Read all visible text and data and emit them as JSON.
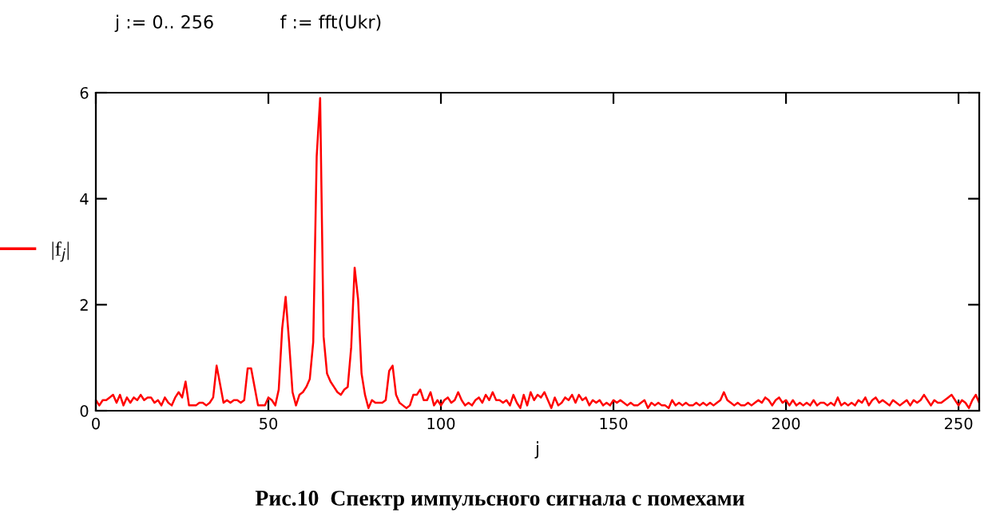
{
  "chart_data": {
    "type": "line",
    "title": "Рис.10  Спектр импульсного сигнала с помехами",
    "xlabel": "j",
    "annotations": [
      "j := 0.. 256",
      "f := fft(Ukr)"
    ],
    "x": [
      0,
      1,
      2,
      3,
      4,
      5,
      6,
      7,
      8,
      9,
      10,
      11,
      12,
      13,
      14,
      15,
      16,
      17,
      18,
      19,
      20,
      21,
      22,
      23,
      24,
      25,
      26,
      27,
      28,
      29,
      30,
      31,
      32,
      33,
      34,
      35,
      36,
      37,
      38,
      39,
      40,
      41,
      42,
      43,
      44,
      45,
      46,
      47,
      48,
      49,
      50,
      51,
      52,
      53,
      54,
      55,
      56,
      57,
      58,
      59,
      60,
      61,
      62,
      63,
      64,
      65,
      66,
      67,
      68,
      69,
      70,
      71,
      72,
      73,
      74,
      75,
      76,
      77,
      78,
      79,
      80,
      81,
      82,
      83,
      84,
      85,
      86,
      87,
      88,
      89,
      90,
      91,
      92,
      93,
      94,
      95,
      96,
      97,
      98,
      99,
      100,
      101,
      102,
      103,
      104,
      105,
      106,
      107,
      108,
      109,
      110,
      111,
      112,
      113,
      114,
      115,
      116,
      117,
      118,
      119,
      120,
      121,
      122,
      123,
      124,
      125,
      126,
      127,
      128,
      129,
      130,
      131,
      132,
      133,
      134,
      135,
      136,
      137,
      138,
      139,
      140,
      141,
      142,
      143,
      144,
      145,
      146,
      147,
      148,
      149,
      150,
      151,
      152,
      153,
      154,
      155,
      156,
      157,
      158,
      159,
      160,
      161,
      162,
      163,
      164,
      165,
      166,
      167,
      168,
      169,
      170,
      171,
      172,
      173,
      174,
      175,
      176,
      177,
      178,
      179,
      180,
      181,
      182,
      183,
      184,
      185,
      186,
      187,
      188,
      189,
      190,
      191,
      192,
      193,
      194,
      195,
      196,
      197,
      198,
      199,
      200,
      201,
      202,
      203,
      204,
      205,
      206,
      207,
      208,
      209,
      210,
      211,
      212,
      213,
      214,
      215,
      216,
      217,
      218,
      219,
      220,
      221,
      222,
      223,
      224,
      225,
      226,
      227,
      228,
      229,
      230,
      231,
      232,
      233,
      234,
      235,
      236,
      237,
      238,
      239,
      240,
      241,
      242,
      243,
      244,
      245,
      246,
      247,
      248,
      249,
      250,
      251,
      252,
      253,
      254,
      255,
      256
    ],
    "series": [
      {
        "name": "|f$_{j}$|",
        "color": "#ff0000",
        "values": [
          0.2,
          0.1,
          0.2,
          0.2,
          0.25,
          0.3,
          0.15,
          0.3,
          0.1,
          0.25,
          0.15,
          0.25,
          0.2,
          0.3,
          0.2,
          0.25,
          0.25,
          0.15,
          0.2,
          0.1,
          0.25,
          0.15,
          0.1,
          0.25,
          0.35,
          0.25,
          0.55,
          0.1,
          0.1,
          0.1,
          0.15,
          0.15,
          0.1,
          0.15,
          0.25,
          0.85,
          0.5,
          0.15,
          0.2,
          0.15,
          0.2,
          0.2,
          0.15,
          0.2,
          0.8,
          0.8,
          0.45,
          0.1,
          0.1,
          0.1,
          0.25,
          0.2,
          0.1,
          0.4,
          1.55,
          2.15,
          1.3,
          0.35,
          0.1,
          0.3,
          0.35,
          0.45,
          0.6,
          1.3,
          4.8,
          5.9,
          1.4,
          0.7,
          0.55,
          0.45,
          0.35,
          0.3,
          0.4,
          0.45,
          1.2,
          2.7,
          2.1,
          0.7,
          0.3,
          0.05,
          0.2,
          0.15,
          0.15,
          0.15,
          0.2,
          0.75,
          0.85,
          0.3,
          0.15,
          0.1,
          0.05,
          0.1,
          0.3,
          0.3,
          0.4,
          0.2,
          0.2,
          0.35,
          0.1,
          0.2,
          0.1,
          0.2,
          0.25,
          0.15,
          0.2,
          0.35,
          0.2,
          0.1,
          0.15,
          0.1,
          0.2,
          0.25,
          0.15,
          0.3,
          0.2,
          0.35,
          0.2,
          0.2,
          0.15,
          0.2,
          0.1,
          0.3,
          0.15,
          0.05,
          0.3,
          0.1,
          0.35,
          0.2,
          0.3,
          0.25,
          0.35,
          0.2,
          0.05,
          0.25,
          0.1,
          0.15,
          0.25,
          0.2,
          0.3,
          0.15,
          0.3,
          0.2,
          0.25,
          0.1,
          0.2,
          0.15,
          0.2,
          0.1,
          0.15,
          0.1,
          0.2,
          0.15,
          0.2,
          0.15,
          0.1,
          0.15,
          0.1,
          0.1,
          0.15,
          0.2,
          0.05,
          0.15,
          0.1,
          0.15,
          0.1,
          0.1,
          0.05,
          0.2,
          0.1,
          0.15,
          0.1,
          0.15,
          0.1,
          0.1,
          0.15,
          0.1,
          0.15,
          0.1,
          0.15,
          0.1,
          0.15,
          0.2,
          0.35,
          0.2,
          0.15,
          0.1,
          0.15,
          0.1,
          0.1,
          0.15,
          0.1,
          0.15,
          0.2,
          0.15,
          0.25,
          0.2,
          0.1,
          0.2,
          0.25,
          0.15,
          0.2,
          0.1,
          0.2,
          0.1,
          0.15,
          0.1,
          0.15,
          0.1,
          0.2,
          0.1,
          0.15,
          0.15,
          0.1,
          0.15,
          0.1,
          0.25,
          0.1,
          0.15,
          0.1,
          0.15,
          0.1,
          0.2,
          0.15,
          0.25,
          0.1,
          0.2,
          0.25,
          0.15,
          0.2,
          0.15,
          0.1,
          0.2,
          0.15,
          0.1,
          0.15,
          0.2,
          0.1,
          0.2,
          0.15,
          0.2,
          0.3,
          0.2,
          0.1,
          0.2,
          0.15,
          0.15,
          0.2,
          0.25,
          0.3,
          0.2,
          0.1,
          0.2,
          0.15,
          0.05,
          0.2,
          0.3,
          0.15
        ]
      }
    ],
    "xlim": [
      0,
      256
    ],
    "ylim": [
      0,
      6
    ],
    "xticks": [
      0,
      50,
      100,
      150,
      200,
      250
    ],
    "yticks": [
      0,
      2,
      4,
      6
    ],
    "grid": false,
    "legend": "left",
    "marker": "none",
    "line_style": "solid"
  }
}
